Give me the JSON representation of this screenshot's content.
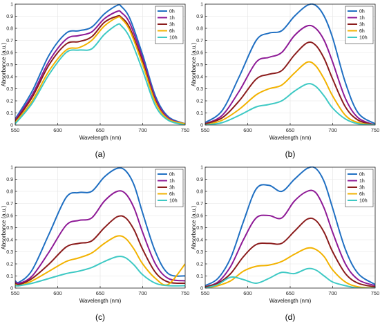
{
  "chart_data": [
    {
      "type": "line",
      "panel_caption": "(a)",
      "xlabel": "Wavelength (nm)",
      "ylabel": "Absorbance (a.u.)",
      "xlim": [
        550,
        750
      ],
      "ylim": [
        0,
        1
      ],
      "xticks": [
        550,
        600,
        650,
        700,
        750
      ],
      "yticks": [
        0,
        0.1,
        0.2,
        0.3,
        0.4,
        0.5,
        0.6,
        0.7,
        0.8,
        0.9,
        1
      ],
      "grid": true,
      "legend": "top-right",
      "series": [
        {
          "name": "0h",
          "color": "#1f6fc2",
          "x": [
            550,
            570,
            590,
            610,
            625,
            640,
            655,
            670,
            675,
            685,
            700,
            715,
            730,
            750
          ],
          "y": [
            0.05,
            0.28,
            0.58,
            0.76,
            0.78,
            0.81,
            0.92,
            0.99,
            0.98,
            0.88,
            0.58,
            0.24,
            0.07,
            0.01
          ]
        },
        {
          "name": "1h",
          "color": "#8e1a96",
          "x": [
            550,
            570,
            590,
            610,
            625,
            640,
            655,
            670,
            675,
            685,
            700,
            715,
            730,
            750
          ],
          "y": [
            0.04,
            0.25,
            0.53,
            0.71,
            0.74,
            0.77,
            0.88,
            0.94,
            0.93,
            0.84,
            0.55,
            0.22,
            0.06,
            0.01
          ]
        },
        {
          "name": "3h",
          "color": "#8b1c1c",
          "x": [
            550,
            570,
            590,
            610,
            625,
            640,
            655,
            670,
            675,
            685,
            700,
            715,
            730,
            750
          ],
          "y": [
            0.03,
            0.23,
            0.5,
            0.67,
            0.69,
            0.73,
            0.85,
            0.9,
            0.89,
            0.8,
            0.52,
            0.2,
            0.05,
            0.01
          ]
        },
        {
          "name": "6h",
          "color": "#f2b200",
          "x": [
            550,
            570,
            590,
            610,
            625,
            640,
            655,
            670,
            675,
            685,
            700,
            715,
            730,
            750
          ],
          "y": [
            0.02,
            0.2,
            0.45,
            0.62,
            0.64,
            0.7,
            0.82,
            0.89,
            0.88,
            0.78,
            0.5,
            0.19,
            0.05,
            0.01
          ]
        },
        {
          "name": "10h",
          "color": "#3ec9c4",
          "x": [
            550,
            570,
            590,
            610,
            625,
            640,
            655,
            670,
            675,
            685,
            700,
            715,
            730,
            750
          ],
          "y": [
            0.01,
            0.18,
            0.42,
            0.6,
            0.62,
            0.63,
            0.75,
            0.83,
            0.82,
            0.72,
            0.45,
            0.16,
            0.04,
            0.0
          ]
        }
      ]
    },
    {
      "type": "line",
      "panel_caption": "(b)",
      "xlabel": "Wavelength (nm)",
      "ylabel": "Absorbance (a.u.)",
      "xlim": [
        550,
        750
      ],
      "ylim": [
        0,
        1
      ],
      "xticks": [
        550,
        600,
        650,
        700,
        750
      ],
      "yticks": [
        0,
        0.1,
        0.2,
        0.3,
        0.4,
        0.5,
        0.6,
        0.7,
        0.8,
        0.9,
        1
      ],
      "grid": true,
      "legend": "top-right",
      "series": [
        {
          "name": "0h",
          "color": "#1f6fc2",
          "x": [
            550,
            570,
            590,
            610,
            625,
            640,
            655,
            670,
            680,
            690,
            700,
            715,
            730,
            750
          ],
          "y": [
            0.02,
            0.12,
            0.4,
            0.7,
            0.76,
            0.78,
            0.9,
            0.99,
            0.99,
            0.9,
            0.72,
            0.35,
            0.1,
            0.01
          ]
        },
        {
          "name": "1h",
          "color": "#8e1a96",
          "x": [
            550,
            570,
            590,
            610,
            625,
            640,
            655,
            670,
            680,
            690,
            700,
            715,
            730,
            750
          ],
          "y": [
            0.01,
            0.08,
            0.28,
            0.52,
            0.56,
            0.6,
            0.74,
            0.82,
            0.8,
            0.7,
            0.52,
            0.22,
            0.06,
            0.0
          ]
        },
        {
          "name": "3h",
          "color": "#8b1c1c",
          "x": [
            550,
            570,
            590,
            610,
            625,
            640,
            655,
            670,
            680,
            690,
            700,
            715,
            730,
            750
          ],
          "y": [
            0.01,
            0.06,
            0.2,
            0.38,
            0.42,
            0.45,
            0.58,
            0.68,
            0.66,
            0.55,
            0.38,
            0.15,
            0.04,
            0.0
          ]
        },
        {
          "name": "6h",
          "color": "#f2b200",
          "x": [
            550,
            570,
            590,
            610,
            625,
            640,
            655,
            670,
            680,
            690,
            700,
            715,
            730,
            750
          ],
          "y": [
            0.0,
            0.04,
            0.13,
            0.25,
            0.3,
            0.33,
            0.43,
            0.52,
            0.49,
            0.38,
            0.24,
            0.08,
            0.02,
            0.0
          ]
        },
        {
          "name": "10h",
          "color": "#3ec9c4",
          "x": [
            550,
            570,
            590,
            610,
            625,
            640,
            655,
            670,
            680,
            690,
            700,
            715,
            730,
            750
          ],
          "y": [
            0.0,
            0.02,
            0.08,
            0.15,
            0.17,
            0.2,
            0.28,
            0.34,
            0.32,
            0.24,
            0.14,
            0.05,
            0.01,
            0.0
          ]
        }
      ]
    },
    {
      "type": "line",
      "panel_caption": "(c)",
      "xlabel": "Wavelength (nm)",
      "ylabel": "Absorbance (a.u.)",
      "xlim": [
        550,
        750
      ],
      "ylim": [
        0,
        1
      ],
      "xticks": [
        550,
        600,
        650,
        700,
        750
      ],
      "yticks": [
        0,
        0.1,
        0.2,
        0.3,
        0.4,
        0.5,
        0.6,
        0.7,
        0.8,
        0.9,
        1
      ],
      "grid": true,
      "legend": "top-right",
      "series": [
        {
          "name": "0h",
          "color": "#1f6fc2",
          "x": [
            550,
            555,
            570,
            590,
            610,
            625,
            640,
            655,
            670,
            680,
            690,
            700,
            715,
            730,
            750
          ],
          "y": [
            0.06,
            0.05,
            0.15,
            0.45,
            0.75,
            0.79,
            0.8,
            0.92,
            0.99,
            0.97,
            0.85,
            0.62,
            0.3,
            0.12,
            0.1
          ]
        },
        {
          "name": "1h",
          "color": "#8e1a96",
          "x": [
            550,
            555,
            570,
            590,
            610,
            625,
            640,
            655,
            670,
            680,
            690,
            700,
            715,
            730,
            750
          ],
          "y": [
            0.05,
            0.04,
            0.1,
            0.3,
            0.52,
            0.56,
            0.58,
            0.72,
            0.8,
            0.78,
            0.66,
            0.46,
            0.2,
            0.08,
            0.06
          ]
        },
        {
          "name": "3h",
          "color": "#8b1c1c",
          "x": [
            550,
            555,
            570,
            590,
            610,
            625,
            640,
            655,
            670,
            680,
            690,
            700,
            715,
            730,
            750
          ],
          "y": [
            0.04,
            0.03,
            0.08,
            0.2,
            0.34,
            0.37,
            0.39,
            0.5,
            0.59,
            0.58,
            0.48,
            0.32,
            0.13,
            0.05,
            0.04
          ]
        },
        {
          "name": "6h",
          "color": "#f2b200",
          "x": [
            550,
            555,
            570,
            590,
            610,
            625,
            640,
            655,
            670,
            680,
            690,
            700,
            715,
            730,
            750
          ],
          "y": [
            0.03,
            0.02,
            0.06,
            0.14,
            0.22,
            0.25,
            0.29,
            0.37,
            0.43,
            0.41,
            0.32,
            0.2,
            0.08,
            0.03,
            0.2
          ]
        },
        {
          "name": "10h",
          "color": "#3ec9c4",
          "x": [
            550,
            555,
            570,
            590,
            610,
            625,
            640,
            655,
            670,
            680,
            690,
            700,
            715,
            730,
            750
          ],
          "y": [
            0.02,
            0.02,
            0.04,
            0.08,
            0.12,
            0.14,
            0.17,
            0.22,
            0.26,
            0.25,
            0.19,
            0.11,
            0.04,
            0.02,
            0.02
          ]
        }
      ]
    },
    {
      "type": "line",
      "panel_caption": "(d)",
      "xlabel": "Wavelength (nm)",
      "ylabel": "Absorbance (a.u.)",
      "xlim": [
        550,
        750
      ],
      "ylim": [
        0,
        1
      ],
      "xticks": [
        550,
        600,
        650,
        700,
        750
      ],
      "yticks": [
        0,
        0.1,
        0.2,
        0.3,
        0.4,
        0.5,
        0.6,
        0.7,
        0.8,
        0.9,
        1
      ],
      "grid": true,
      "legend": "top-right",
      "series": [
        {
          "name": "0h",
          "color": "#1f6fc2",
          "x": [
            550,
            565,
            580,
            595,
            610,
            625,
            640,
            655,
            670,
            680,
            690,
            700,
            715,
            730,
            750
          ],
          "y": [
            0.02,
            0.08,
            0.25,
            0.55,
            0.82,
            0.85,
            0.8,
            0.9,
            0.99,
            0.99,
            0.88,
            0.66,
            0.32,
            0.12,
            0.03
          ]
        },
        {
          "name": "1h",
          "color": "#8e1a96",
          "x": [
            550,
            565,
            580,
            595,
            610,
            625,
            640,
            655,
            670,
            680,
            690,
            700,
            715,
            730,
            750
          ],
          "y": [
            0.01,
            0.05,
            0.18,
            0.4,
            0.58,
            0.6,
            0.58,
            0.72,
            0.8,
            0.79,
            0.66,
            0.46,
            0.2,
            0.07,
            0.02
          ]
        },
        {
          "name": "3h",
          "color": "#8b1c1c",
          "x": [
            550,
            565,
            580,
            595,
            610,
            625,
            640,
            655,
            670,
            680,
            690,
            700,
            715,
            730,
            750
          ],
          "y": [
            0.01,
            0.04,
            0.12,
            0.26,
            0.36,
            0.37,
            0.37,
            0.47,
            0.57,
            0.56,
            0.46,
            0.3,
            0.12,
            0.04,
            0.01
          ]
        },
        {
          "name": "6h",
          "color": "#f2b200",
          "x": [
            550,
            565,
            580,
            595,
            610,
            625,
            640,
            655,
            670,
            680,
            690,
            700,
            715,
            730,
            750
          ],
          "y": [
            0.0,
            0.02,
            0.06,
            0.14,
            0.18,
            0.19,
            0.22,
            0.28,
            0.33,
            0.32,
            0.26,
            0.15,
            0.05,
            0.01,
            0.0
          ]
        },
        {
          "name": "10h",
          "color": "#3ec9c4",
          "x": [
            550,
            565,
            580,
            595,
            610,
            625,
            640,
            655,
            670,
            680,
            690,
            700,
            715,
            730,
            750
          ],
          "y": [
            0.0,
            0.03,
            0.09,
            0.07,
            0.04,
            0.08,
            0.13,
            0.12,
            0.16,
            0.15,
            0.1,
            0.05,
            0.02,
            0.0,
            0.0
          ]
        }
      ]
    }
  ]
}
